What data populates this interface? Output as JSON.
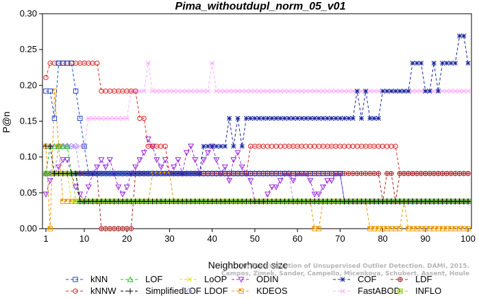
{
  "chart_data": {
    "type": "line",
    "title": "Pima_withoutdupl_norm_05_v01",
    "xlabel": "Neighborhood size",
    "ylabel": "P@n",
    "xlim": [
      1,
      100
    ],
    "ylim": [
      0,
      0.3
    ],
    "xticks": [
      1,
      10,
      20,
      30,
      40,
      50,
      60,
      70,
      80,
      90,
      100
    ],
    "yticks": [
      0.0,
      0.05,
      0.1,
      0.15,
      0.2,
      0.25,
      0.3
    ],
    "credit": "Campos, Zimek, Sander, Campello, Micenkova, Schubert, Assent, Houle",
    "credit_title": "On the Evaluation of Unsupervised Outlier Detection. DAMI, 2015.",
    "legend_position": "bottom",
    "series": [
      {
        "name": "kNN",
        "color": "#2244cc",
        "marker": "square",
        "segments": [
          [
            1,
            0.192
          ],
          [
            2,
            0.192
          ],
          [
            3,
            0.154
          ],
          [
            4,
            0.231
          ],
          [
            7,
            0.231
          ],
          [
            8,
            0.192
          ],
          [
            9,
            0.154
          ],
          [
            10,
            0.115
          ],
          [
            11,
            0.077
          ],
          [
            70,
            0.077
          ],
          [
            71,
            0.038
          ],
          [
            100,
            0.038
          ]
        ]
      },
      {
        "name": "kNNW",
        "color": "#dd2222",
        "marker": "circle",
        "segments": [
          [
            1,
            0.211
          ],
          [
            2,
            0.231
          ],
          [
            13,
            0.231
          ],
          [
            14,
            0.192
          ],
          [
            22,
            0.192
          ],
          [
            23,
            0.154
          ],
          [
            24,
            0.154
          ],
          [
            25,
            0.115
          ],
          [
            29,
            0.115
          ],
          [
            30,
            0.077
          ],
          [
            48,
            0.077
          ],
          [
            49,
            0.115
          ],
          [
            83,
            0.115
          ],
          [
            84,
            0.077
          ],
          [
            100,
            0.077
          ]
        ]
      },
      {
        "name": "LOF",
        "color": "#22bb22",
        "marker": "triangle",
        "segments": [
          [
            1,
            0.077
          ],
          [
            2,
            0.115
          ],
          [
            6,
            0.115
          ],
          [
            7,
            0.077
          ],
          [
            8,
            0.077
          ],
          [
            9,
            0.038
          ],
          [
            100,
            0.038
          ]
        ]
      },
      {
        "name": "SimplifiedLOF",
        "color": "#000000",
        "marker": "plus",
        "segments": [
          [
            1,
            0.115
          ],
          [
            2,
            0.115
          ],
          [
            3,
            0.077
          ],
          [
            8,
            0.077
          ],
          [
            9,
            0.038
          ],
          [
            100,
            0.038
          ]
        ]
      },
      {
        "name": "LoOP",
        "color": "#dddd00",
        "marker": "x",
        "segments": [
          [
            1,
            0.077
          ],
          [
            6,
            0.077
          ],
          [
            7,
            0.038
          ],
          [
            100,
            0.038
          ]
        ]
      },
      {
        "name": "LDOF",
        "color": "#9999ee",
        "marker": "diamond",
        "segments": [
          [
            1,
            0.077
          ],
          [
            3,
            0.077
          ],
          [
            4,
            0.115
          ],
          [
            8,
            0.115
          ],
          [
            9,
            0.077
          ],
          [
            58,
            0.077
          ],
          [
            59,
            0.038
          ],
          [
            100,
            0.038
          ]
        ]
      },
      {
        "name": "ODIN",
        "color": "#9922dd",
        "marker": "triangle-down",
        "segments": [
          [
            1,
            0.048
          ],
          [
            2,
            0.067
          ],
          [
            3,
            0.077
          ],
          [
            4,
            0.086
          ],
          [
            5,
            0.096
          ],
          [
            6,
            0.096
          ],
          [
            7,
            0.077
          ],
          [
            8,
            0.058
          ],
          [
            9,
            0.048
          ],
          [
            10,
            0.038
          ],
          [
            11,
            0.058
          ],
          [
            12,
            0.077
          ],
          [
            13,
            0.086
          ],
          [
            14,
            0.096
          ],
          [
            15,
            0.086
          ],
          [
            16,
            0.096
          ],
          [
            17,
            0.077
          ],
          [
            18,
            0.058
          ],
          [
            19,
            0.048
          ],
          [
            20,
            0.058
          ],
          [
            21,
            0.077
          ],
          [
            22,
            0.086
          ],
          [
            23,
            0.096
          ],
          [
            24,
            0.106
          ],
          [
            25,
            0.125
          ],
          [
            26,
            0.115
          ],
          [
            27,
            0.096
          ],
          [
            28,
            0.086
          ],
          [
            29,
            0.096
          ],
          [
            30,
            0.077
          ],
          [
            31,
            0.086
          ],
          [
            32,
            0.096
          ],
          [
            33,
            0.077
          ],
          [
            34,
            0.106
          ],
          [
            35,
            0.115
          ],
          [
            36,
            0.096
          ],
          [
            37,
            0.077
          ],
          [
            38,
            0.096
          ],
          [
            39,
            0.106
          ],
          [
            40,
            0.115
          ],
          [
            41,
            0.096
          ],
          [
            42,
            0.077
          ],
          [
            43,
            0.086
          ],
          [
            44,
            0.067
          ],
          [
            45,
            0.096
          ],
          [
            46,
            0.106
          ],
          [
            47,
            0.086
          ],
          [
            48,
            0.077
          ],
          [
            49,
            0.067
          ],
          [
            50,
            0.038
          ],
          [
            51,
            0.038
          ],
          [
            52,
            0.038
          ],
          [
            53,
            0.048
          ],
          [
            54,
            0.058
          ],
          [
            55,
            0.058
          ],
          [
            56,
            0.067
          ],
          [
            57,
            0.077
          ],
          [
            58,
            0.077
          ],
          [
            59,
            0.067
          ],
          [
            60,
            0.077
          ],
          [
            61,
            0.077
          ],
          [
            62,
            0.077
          ],
          [
            63,
            0.067
          ],
          [
            64,
            0.048
          ],
          [
            65,
            0.048
          ],
          [
            66,
            0.058
          ],
          [
            67,
            0.067
          ],
          [
            68,
            0.067
          ],
          [
            69,
            0.077
          ],
          [
            70,
            0.077
          ],
          [
            71,
            0.038
          ],
          [
            100,
            0.038
          ]
        ]
      },
      {
        "name": "KDEOS",
        "color": "#ee9900",
        "marker": "square-filled",
        "segments": [
          [
            1,
            0.115
          ],
          [
            2,
            0.0
          ],
          [
            3,
            0.192
          ],
          [
            4,
            0.115
          ],
          [
            5,
            0.038
          ],
          [
            25,
            0.038
          ],
          [
            26,
            0.077
          ],
          [
            30,
            0.077
          ],
          [
            31,
            0.038
          ],
          [
            63,
            0.038
          ],
          [
            64,
            0.0
          ],
          [
            65,
            0.0
          ],
          [
            66,
            0.038
          ],
          [
            76,
            0.038
          ],
          [
            77,
            0.0
          ],
          [
            84,
            0.0
          ],
          [
            85,
            0.038
          ],
          [
            86,
            0.0
          ],
          [
            100,
            0.0
          ]
        ]
      },
      {
        "name": "COF",
        "color": "#112299",
        "marker": "asterisk",
        "segments": [
          [
            1,
            0.077
          ],
          [
            37,
            0.077
          ],
          [
            38,
            0.115
          ],
          [
            43,
            0.115
          ],
          [
            44,
            0.154
          ],
          [
            45,
            0.115
          ],
          [
            46,
            0.154
          ],
          [
            47,
            0.115
          ],
          [
            48,
            0.154
          ],
          [
            73,
            0.154
          ],
          [
            74,
            0.192
          ],
          [
            75,
            0.154
          ],
          [
            76,
            0.192
          ],
          [
            77,
            0.154
          ],
          [
            78,
            0.154
          ],
          [
            79,
            0.154
          ],
          [
            80,
            0.192
          ],
          [
            86,
            0.192
          ],
          [
            87,
            0.231
          ],
          [
            89,
            0.231
          ],
          [
            90,
            0.192
          ],
          [
            91,
            0.192
          ],
          [
            92,
            0.231
          ],
          [
            93,
            0.192
          ],
          [
            94,
            0.231
          ],
          [
            97,
            0.231
          ],
          [
            98,
            0.269
          ],
          [
            99,
            0.269
          ],
          [
            100,
            0.231
          ]
        ]
      },
      {
        "name": "FastABOD",
        "color": "#ffaaff",
        "marker": "star",
        "segments": [
          [
            1,
            0.077
          ],
          [
            2,
            0.115
          ],
          [
            10,
            0.115
          ],
          [
            11,
            0.154
          ],
          [
            20,
            0.154
          ],
          [
            21,
            0.192
          ],
          [
            24,
            0.192
          ],
          [
            25,
            0.231
          ],
          [
            26,
            0.192
          ],
          [
            39,
            0.192
          ],
          [
            40,
            0.231
          ],
          [
            41,
            0.192
          ],
          [
            100,
            0.192
          ]
        ]
      },
      {
        "name": "LDF",
        "color": "#aa2222",
        "marker": "circle-plus",
        "segments": [
          [
            1,
            0.077
          ],
          [
            13,
            0.077
          ],
          [
            14,
            0.0
          ],
          [
            21,
            0.0
          ],
          [
            22,
            0.077
          ],
          [
            80,
            0.038
          ],
          [
            81,
            0.077
          ],
          [
            82,
            0.077
          ],
          [
            83,
            0.038
          ],
          [
            84,
            0.077
          ],
          [
            100,
            0.077
          ]
        ]
      },
      {
        "name": "INFLO",
        "color": "#99cc22",
        "marker": "hourglass",
        "segments": [
          [
            1,
            0.077
          ],
          [
            7,
            0.077
          ],
          [
            8,
            0.038
          ],
          [
            100,
            0.038
          ]
        ]
      }
    ]
  }
}
